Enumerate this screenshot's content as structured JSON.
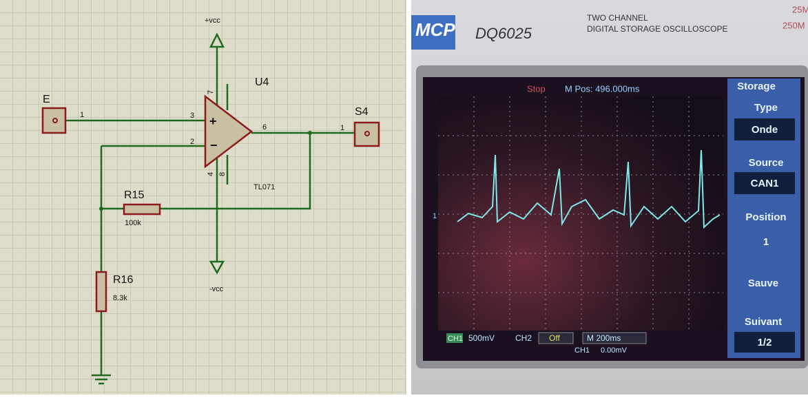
{
  "schematic": {
    "power": {
      "positive": "+vcc",
      "negative": "-vcc"
    },
    "opamp": {
      "ref": "U4",
      "model": "TL071",
      "sign_plus": "+",
      "sign_minus": "−",
      "pins": {
        "in_plus": "3",
        "in_minus": "2",
        "out": "6",
        "v_plus": "7",
        "v_minus": "4",
        "offset": "8"
      }
    },
    "input": {
      "label": "E",
      "pin": "1"
    },
    "output": {
      "label": "S4",
      "pin": "1"
    },
    "resistors": [
      {
        "ref": "R15",
        "value": "100k"
      },
      {
        "ref": "R16",
        "value": "8.3k"
      }
    ]
  },
  "oscilloscope": {
    "brand": "MCP",
    "model": "DQ6025",
    "line1": "TWO CHANNEL",
    "line2": "DIGITAL STORAGE OSCILLOSCOPE",
    "spec1": "25M",
    "spec2": "250M",
    "status": "Stop",
    "mpos": "M Pos: 496.000ms",
    "marker": "1",
    "menu": {
      "title": "Storage",
      "items": [
        {
          "label": "Type",
          "value": "Onde"
        },
        {
          "label": "Source",
          "value": "CAN1"
        },
        {
          "label": "Position",
          "value": "1"
        },
        {
          "label": "Sauve"
        },
        {
          "label": "Suivant",
          "value": "1/2"
        }
      ]
    },
    "bottom": {
      "ch1": "CH1",
      "ch1_scale": "500mV",
      "ch2": "CH2",
      "ch2_state": "Off",
      "time": "M 200ms",
      "trig_ch": "CH1",
      "trig_level": "0.00mV"
    }
  }
}
